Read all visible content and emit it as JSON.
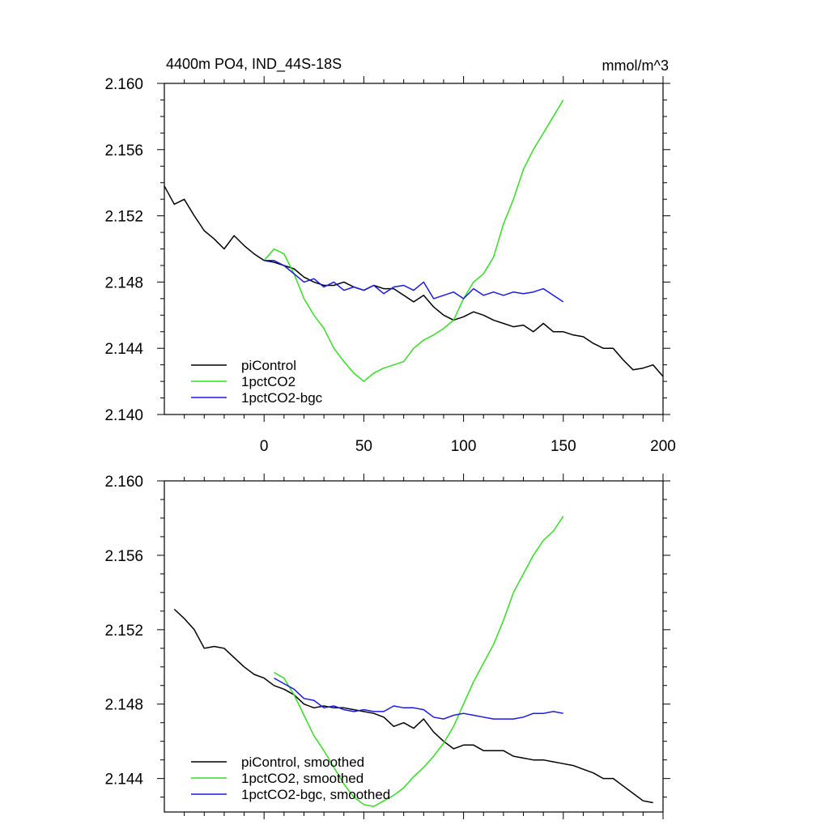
{
  "chart_data": [
    {
      "type": "line",
      "title": "4400m PO4, IND_44S-18S",
      "units": "mmol/m^3",
      "xlim": [
        -50,
        200
      ],
      "ylim": [
        2.14,
        2.16
      ],
      "x_ticks": [
        0,
        50,
        100,
        150,
        200
      ],
      "x_tick_labels": [
        "0",
        "50",
        "100",
        "150",
        "200"
      ],
      "y_ticks": [
        2.14,
        2.144,
        2.148,
        2.152,
        2.156,
        2.16
      ],
      "y_tick_labels": [
        "2.140",
        "2.144",
        "2.148",
        "2.152",
        "2.156",
        "2.160"
      ],
      "legend": "bottom-left",
      "grid": false,
      "series": [
        {
          "name": "piControl",
          "color": "#000000",
          "x": [
            -50,
            -45,
            -40,
            -35,
            -30,
            -25,
            -20,
            -15,
            -10,
            -5,
            0,
            5,
            10,
            15,
            20,
            25,
            30,
            35,
            40,
            45,
            50,
            55,
            60,
            65,
            70,
            75,
            80,
            85,
            90,
            95,
            100,
            105,
            110,
            115,
            120,
            125,
            130,
            135,
            140,
            145,
            150,
            155,
            160,
            165,
            170,
            175,
            180,
            185,
            190,
            195,
            200
          ],
          "y": [
            2.1538,
            2.1527,
            2.153,
            2.152,
            2.1511,
            2.1506,
            2.15,
            2.1508,
            2.1502,
            2.1497,
            2.1493,
            2.1492,
            2.149,
            2.1488,
            2.1483,
            2.148,
            2.1478,
            2.1478,
            2.148,
            2.1477,
            2.1475,
            2.1478,
            2.1476,
            2.1476,
            2.1472,
            2.1468,
            2.1472,
            2.1465,
            2.146,
            2.1457,
            2.1459,
            2.1462,
            2.146,
            2.1457,
            2.1455,
            2.1453,
            2.1454,
            2.145,
            2.1455,
            2.145,
            2.145,
            2.1448,
            2.1447,
            2.1443,
            2.144,
            2.144,
            2.1433,
            2.1427,
            2.1428,
            2.143,
            2.1423
          ]
        },
        {
          "name": "1pctCO2",
          "color": "#33dd22",
          "x": [
            0,
            5,
            10,
            15,
            20,
            25,
            30,
            35,
            40,
            45,
            50,
            55,
            60,
            65,
            70,
            75,
            80,
            85,
            90,
            95,
            100,
            105,
            110,
            115,
            120,
            125,
            130,
            135,
            140,
            145,
            150
          ],
          "y": [
            2.1493,
            2.15,
            2.1497,
            2.1485,
            2.147,
            2.146,
            2.1452,
            2.144,
            2.1432,
            2.1425,
            2.142,
            2.1425,
            2.1428,
            2.143,
            2.1432,
            2.144,
            2.1445,
            2.1448,
            2.1452,
            2.1457,
            2.147,
            2.148,
            2.1485,
            2.1495,
            2.1515,
            2.153,
            2.1548,
            2.156,
            2.157,
            2.158,
            2.159
          ]
        },
        {
          "name": "1pctCO2-bgc",
          "color": "#1a1adf",
          "x": [
            0,
            5,
            10,
            15,
            20,
            25,
            30,
            35,
            40,
            45,
            50,
            55,
            60,
            65,
            70,
            75,
            80,
            85,
            90,
            95,
            100,
            105,
            110,
            115,
            120,
            125,
            130,
            135,
            140,
            145,
            150
          ],
          "y": [
            2.1493,
            2.1493,
            2.149,
            2.1485,
            2.148,
            2.1482,
            2.1477,
            2.148,
            2.1475,
            2.1477,
            2.1475,
            2.1478,
            2.1473,
            2.1477,
            2.1478,
            2.1475,
            2.148,
            2.147,
            2.1472,
            2.1474,
            2.147,
            2.1476,
            2.1472,
            2.1474,
            2.1472,
            2.1474,
            2.1473,
            2.1474,
            2.1476,
            2.1472,
            2.1468
          ]
        }
      ]
    },
    {
      "type": "line",
      "title": "",
      "xlim": [
        -50,
        200
      ],
      "ylim": [
        2.1422,
        2.16
      ],
      "x_ticks": [
        0,
        50,
        100,
        150,
        200
      ],
      "y_ticks": [
        2.144,
        2.148,
        2.152,
        2.156,
        2.16
      ],
      "y_tick_labels": [
        "2.144",
        "2.148",
        "2.152",
        "2.156",
        "2.160"
      ],
      "legend": "bottom-left",
      "grid": false,
      "series": [
        {
          "name": "piControl, smoothed",
          "color": "#000000",
          "x": [
            -45,
            -40,
            -35,
            -30,
            -25,
            -20,
            -15,
            -10,
            -5,
            0,
            5,
            10,
            15,
            20,
            25,
            30,
            35,
            40,
            45,
            50,
            55,
            60,
            65,
            70,
            75,
            80,
            85,
            90,
            95,
            100,
            105,
            110,
            115,
            120,
            125,
            130,
            135,
            140,
            145,
            150,
            155,
            160,
            165,
            170,
            175,
            180,
            185,
            190,
            195
          ],
          "y": [
            2.1531,
            2.1526,
            2.152,
            2.151,
            2.1511,
            2.151,
            2.1505,
            2.15,
            2.1496,
            2.1494,
            2.149,
            2.1488,
            2.1485,
            2.148,
            2.1478,
            2.1479,
            2.1478,
            2.1478,
            2.1477,
            2.1476,
            2.1475,
            2.1473,
            2.1468,
            2.147,
            2.1467,
            2.1472,
            2.1465,
            2.146,
            2.1456,
            2.1458,
            2.1458,
            2.1455,
            2.1455,
            2.1455,
            2.1452,
            2.1451,
            2.145,
            2.145,
            2.1449,
            2.1448,
            2.1447,
            2.1445,
            2.1443,
            2.144,
            2.144,
            2.1436,
            2.1432,
            2.1428,
            2.1427
          ]
        },
        {
          "name": "1pctCO2, smoothed",
          "color": "#33dd22",
          "x": [
            5,
            10,
            15,
            20,
            25,
            30,
            35,
            40,
            45,
            50,
            55,
            60,
            65,
            70,
            75,
            80,
            85,
            90,
            95,
            100,
            105,
            110,
            115,
            120,
            125,
            130,
            135,
            140,
            145,
            150
          ],
          "y": [
            2.1497,
            2.1494,
            2.1485,
            2.1474,
            2.1463,
            2.1455,
            2.1446,
            2.1437,
            2.143,
            2.1426,
            2.1425,
            2.1428,
            2.1431,
            2.1435,
            2.1441,
            2.1446,
            2.1452,
            2.1459,
            2.1468,
            2.148,
            2.1492,
            2.1502,
            2.1512,
            2.1525,
            2.154,
            2.155,
            2.156,
            2.1568,
            2.1573,
            2.1581
          ]
        },
        {
          "name": "1pctCO2-bgc, smoothed",
          "color": "#1a1adf",
          "x": [
            5,
            10,
            15,
            20,
            25,
            30,
            35,
            40,
            45,
            50,
            55,
            60,
            65,
            70,
            75,
            80,
            85,
            90,
            95,
            100,
            105,
            110,
            115,
            120,
            125,
            130,
            135,
            140,
            145,
            150
          ],
          "y": [
            2.1494,
            2.1491,
            2.1488,
            2.1483,
            2.1482,
            2.1478,
            2.1479,
            2.1477,
            2.1476,
            2.1477,
            2.1476,
            2.1476,
            2.1479,
            2.1478,
            2.1478,
            2.1477,
            2.1473,
            2.1472,
            2.1474,
            2.1475,
            2.1474,
            2.1473,
            2.1472,
            2.1472,
            2.1472,
            2.1473,
            2.1475,
            2.1475,
            2.1476,
            2.1475
          ]
        }
      ]
    }
  ]
}
